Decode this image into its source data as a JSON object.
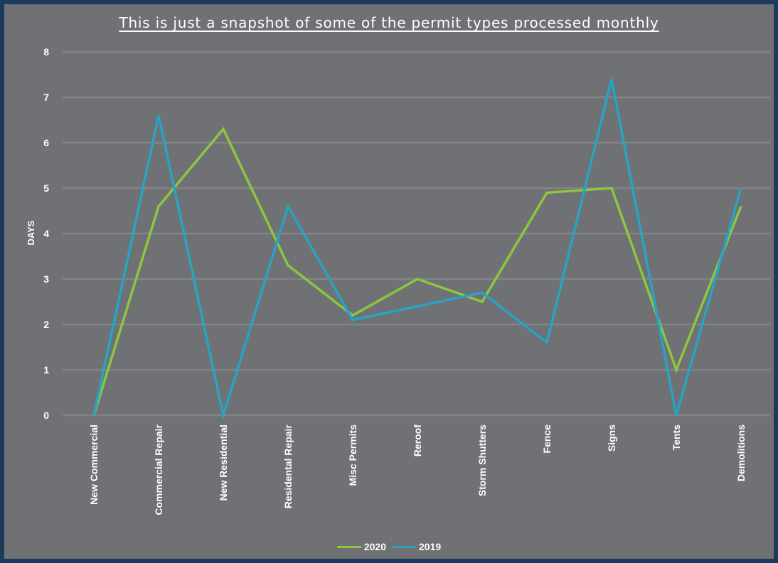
{
  "chart_data": {
    "type": "line",
    "title": "This is just a snapshot of some of the permit types processed monthly",
    "ylabel": "DAYS",
    "xlabel": "",
    "ylim": [
      0,
      8
    ],
    "yticks": [
      0,
      1,
      2,
      3,
      4,
      5,
      6,
      7,
      8
    ],
    "grid": true,
    "legend_position": "bottom",
    "categories": [
      "New Commercial",
      "Commercial Repair",
      "New Residential",
      "Residental Repair",
      "Misc Permits",
      "Reroof",
      "Storm Shutters",
      "Fence",
      "Signs",
      "Tents",
      "Demolitions"
    ],
    "series": [
      {
        "name": "2020",
        "color": "#8dc63f",
        "values": [
          0,
          4.6,
          6.3,
          3.3,
          2.2,
          3.0,
          2.5,
          4.9,
          5.0,
          1.0,
          4.6
        ]
      },
      {
        "name": "2019",
        "color": "#27a3c4",
        "values": [
          0,
          6.6,
          0,
          4.6,
          2.1,
          2.4,
          2.7,
          1.6,
          7.4,
          0,
          5.0
        ]
      }
    ]
  }
}
